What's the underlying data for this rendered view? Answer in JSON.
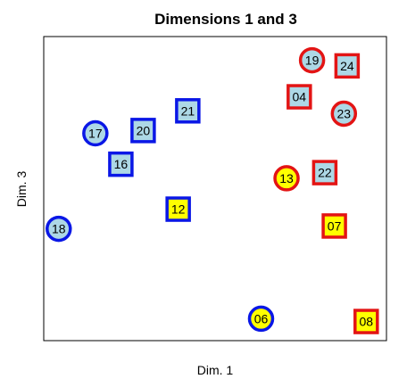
{
  "chart_data": {
    "type": "scatter",
    "title": "Dimensions 1 and 3",
    "xlabel": "Dim. 1",
    "ylabel": "Dim. 3",
    "xlim": [
      0,
      100
    ],
    "ylim": [
      0,
      100
    ],
    "axis_ticks": false,
    "grid": false,
    "colors": {
      "blue": "#0a17e6",
      "red": "#e31414",
      "fill_lightblue": "#add8e6",
      "fill_yellow": "#ffff00"
    },
    "points": [
      {
        "label": "19",
        "x": 80,
        "y": 96,
        "shape": "circle",
        "border": "red",
        "fill": "lightblue"
      },
      {
        "label": "24",
        "x": 91,
        "y": 94,
        "shape": "square",
        "border": "red",
        "fill": "lightblue"
      },
      {
        "label": "04",
        "x": 76,
        "y": 83,
        "shape": "square",
        "border": "red",
        "fill": "lightblue"
      },
      {
        "label": "23",
        "x": 90,
        "y": 77,
        "shape": "circle",
        "border": "red",
        "fill": "lightblue"
      },
      {
        "label": "21",
        "x": 41,
        "y": 78,
        "shape": "square",
        "border": "blue",
        "fill": "lightblue"
      },
      {
        "label": "17",
        "x": 12,
        "y": 70,
        "shape": "circle",
        "border": "blue",
        "fill": "lightblue"
      },
      {
        "label": "20",
        "x": 27,
        "y": 71,
        "shape": "square",
        "border": "blue",
        "fill": "lightblue"
      },
      {
        "label": "16",
        "x": 20,
        "y": 59,
        "shape": "square",
        "border": "blue",
        "fill": "lightblue"
      },
      {
        "label": "22",
        "x": 84,
        "y": 56,
        "shape": "square",
        "border": "red",
        "fill": "lightblue"
      },
      {
        "label": "13",
        "x": 72,
        "y": 54,
        "shape": "circle",
        "border": "red",
        "fill": "yellow"
      },
      {
        "label": "12",
        "x": 38,
        "y": 43,
        "shape": "square",
        "border": "blue",
        "fill": "yellow"
      },
      {
        "label": "18",
        "x": 0.5,
        "y": 36,
        "shape": "circle",
        "border": "blue",
        "fill": "lightblue"
      },
      {
        "label": "07",
        "x": 87,
        "y": 37,
        "shape": "square",
        "border": "red",
        "fill": "yellow"
      },
      {
        "label": "06",
        "x": 64,
        "y": 4,
        "shape": "circle",
        "border": "blue",
        "fill": "yellow"
      },
      {
        "label": "08",
        "x": 97,
        "y": 3,
        "shape": "square",
        "border": "red",
        "fill": "yellow"
      }
    ]
  }
}
